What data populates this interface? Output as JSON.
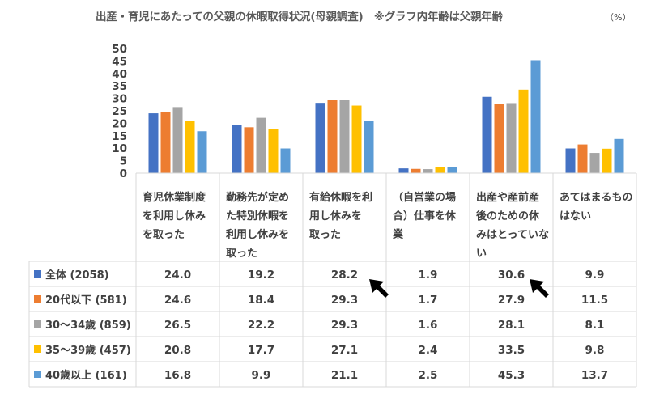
{
  "title": "出産・育児にあたっての父親の休暇取得状況(母親調査)　※グラフ内年齢は父親年齢",
  "unit": "（%）",
  "chart_data": {
    "type": "bar",
    "title": "出産・育児にあたっての父親の休暇取得状況(母親調査)　※グラフ内年齢は父親年齢",
    "ylabel": "",
    "ylim": [
      0,
      50
    ],
    "yticks": [
      0,
      5,
      10,
      15,
      20,
      25,
      30,
      35,
      40,
      45,
      50
    ],
    "grid": false,
    "legend": "table-left",
    "categories": [
      [
        "育児休業制度",
        "を利用し休み",
        "を取った"
      ],
      [
        "勤務先が定め",
        "た特別休暇を",
        "利用し休みを",
        "取った"
      ],
      [
        "有給休暇を利",
        "用し休みを",
        "取った"
      ],
      [
        "（自営業の場",
        "合）仕事を休",
        "業"
      ],
      [
        "出産や産前産",
        "後のための休",
        "みはとっていな",
        "い"
      ],
      [
        "あてはまるもの",
        "はない"
      ]
    ],
    "series": [
      {
        "name": "全体 (2058)",
        "color": "#4472C4",
        "values": [
          24.0,
          19.2,
          28.2,
          1.9,
          30.6,
          9.9
        ],
        "labels": [
          "24.0",
          "19.2",
          "28.2",
          "1.9",
          "30.6",
          "9.9"
        ]
      },
      {
        "name": "20代以下 (581)",
        "color": "#ED7D31",
        "values": [
          24.6,
          18.4,
          29.3,
          1.7,
          27.9,
          11.5
        ],
        "labels": [
          "24.6",
          "18.4",
          "29.3",
          "1.7",
          "27.9",
          "11.5"
        ]
      },
      {
        "name": "30～34歳 (859)",
        "color": "#A5A5A5",
        "values": [
          26.5,
          22.2,
          29.3,
          1.6,
          28.1,
          8.1
        ],
        "labels": [
          "26.5",
          "22.2",
          "29.3",
          "1.6",
          "28.1",
          "8.1"
        ]
      },
      {
        "name": "35～39歳 (457)",
        "color": "#FFC000",
        "values": [
          20.8,
          17.7,
          27.1,
          2.4,
          33.5,
          9.8
        ],
        "labels": [
          "20.8",
          "17.7",
          "27.1",
          "2.4",
          "33.5",
          "9.8"
        ]
      },
      {
        "name": "40歳以上 (161)",
        "color": "#5B9BD5",
        "values": [
          16.8,
          9.9,
          21.1,
          2.5,
          45.3,
          13.7
        ],
        "labels": [
          "16.8",
          "9.9",
          "21.1",
          "2.5",
          "45.3",
          "13.7"
        ]
      }
    ]
  }
}
